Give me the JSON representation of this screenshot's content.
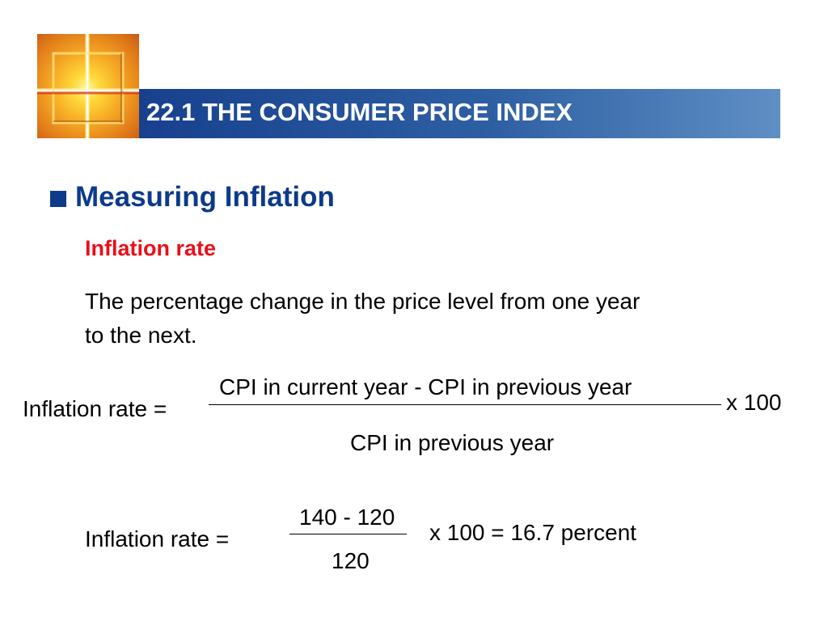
{
  "header": {
    "title": "22.1 THE CONSUMER PRICE INDEX",
    "logo_icon": "cross-window-logo-icon"
  },
  "section": {
    "bullet_icon": "square-bullet-icon",
    "heading": "Measuring Inflation",
    "subheading": "Inflation rate",
    "definition_lines": [
      "The percentage change in the price level from one year",
      "to the next."
    ]
  },
  "formula": {
    "label": "Inflation rate =",
    "numerator": "CPI in current year - CPI in previous year",
    "denominator": "CPI in previous year",
    "multiplier": "x 100"
  },
  "example": {
    "label": "Inflation rate =",
    "numerator": "140 - 120",
    "denominator": "120",
    "result": "x 100 = 16.7 percent"
  },
  "colors": {
    "title_bar": "#17408e",
    "heading": "#0d3a8a",
    "subheading": "#e8101a"
  }
}
